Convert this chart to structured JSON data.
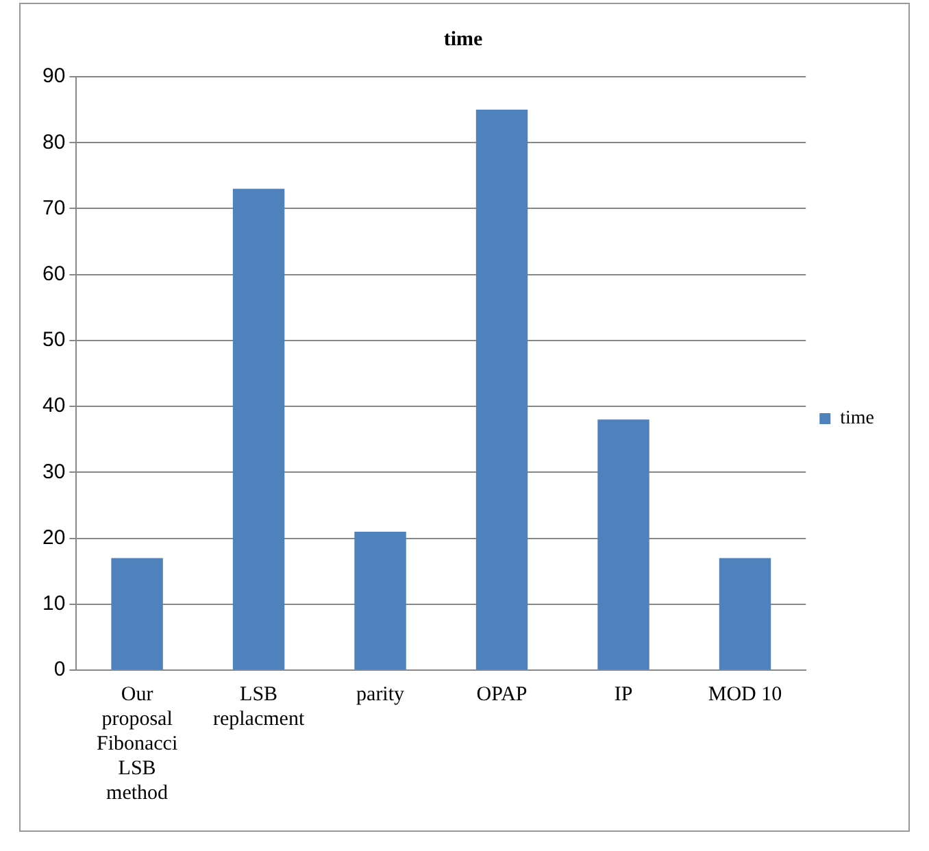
{
  "chart_data": {
    "type": "bar",
    "title": "time",
    "categories": [
      "Our proposal Fibonacci LSB method",
      "LSB replacment",
      "parity",
      "OPAP",
      "IP",
      "MOD 10"
    ],
    "series": [
      {
        "name": "time",
        "color": "#4f81bd",
        "values": [
          17,
          73,
          21,
          85,
          38,
          17
        ]
      }
    ],
    "ylim": [
      0,
      90
    ],
    "yticks": [
      0,
      10,
      20,
      30,
      40,
      50,
      60,
      70,
      80,
      90
    ],
    "grid": "y",
    "legend": "right"
  }
}
